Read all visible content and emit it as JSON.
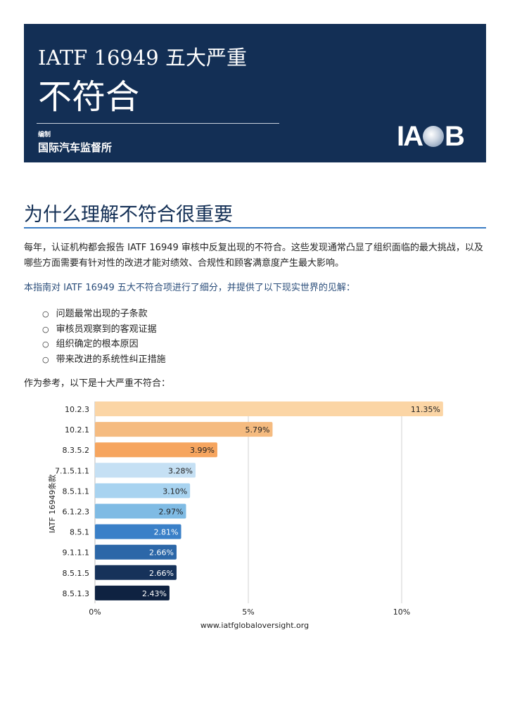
{
  "header": {
    "title_line1": "IATF 16949 五大严重",
    "title_line2": "不符合",
    "compiled_by": "编制",
    "organization": "国际汽车监督所",
    "logo": "IAOB"
  },
  "section": {
    "heading": "为什么理解不符合很重要",
    "para1": "每年，认证机构都会报告 IATF 16949 审核中反复出现的不符合。这些发现通常凸显了组织面临的最大挑战，以及哪些方面需要有针对性的改进才能对绩效、合规性和顾客满意度产生最大影响。",
    "para2": "本指南对 IATF 16949 五大不符合项进行了细分，并提供了以下现实世界的见解：",
    "bullets": [
      "问题最常出现的子条款",
      "审核员观察到的客观证据",
      "组织确定的根本原因",
      "带来改进的系统性纠正措施"
    ],
    "para3": "作为参考，以下是十大严重不符合："
  },
  "chart_data": {
    "type": "bar",
    "orientation": "horizontal",
    "categories": [
      "10.2.3",
      "10.2.1",
      "8.3.5.2",
      "7.1.5.1.1",
      "8.5.1.1",
      "6.1.2.3",
      "8.5.1",
      "9.1.1.1",
      "8.5.1.5",
      "8.5.1.3"
    ],
    "values": [
      11.35,
      5.79,
      3.99,
      3.28,
      3.1,
      2.97,
      2.81,
      2.66,
      2.66,
      2.43
    ],
    "data_labels": [
      "11.35%",
      "5.79%",
      "3.99%",
      "3.28%",
      "3.10%",
      "2.97%",
      "2.81%",
      "2.66%",
      "2.66%",
      "2.43%"
    ],
    "colors": [
      "#fbd5a5",
      "#f5bb80",
      "#f6a55f",
      "#c5e0f4",
      "#a8d3f0",
      "#7fbbe4",
      "#3a80c8",
      "#2c67a8",
      "#16325a",
      "#0f2241"
    ],
    "ylabel": "IATF 16949条款",
    "xlabel": "",
    "xlim": [
      0,
      12
    ],
    "xticks": [
      0,
      5,
      10
    ],
    "xtick_labels": [
      "0%",
      "5%",
      "10%"
    ],
    "grid": "vertical",
    "source": "www.iatfglobaloversight.org"
  }
}
